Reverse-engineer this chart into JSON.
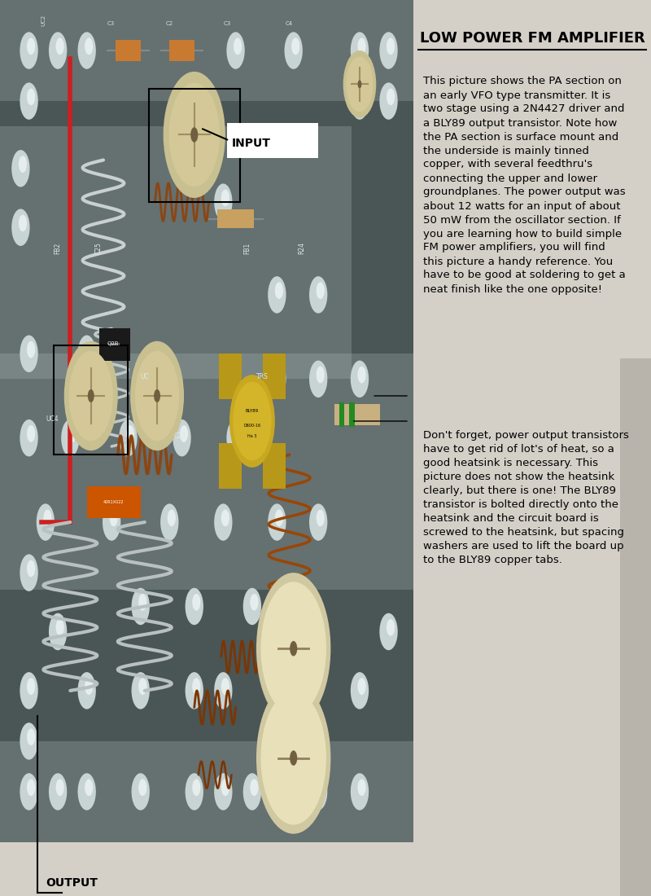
{
  "title": "LOW POWER FM AMPLIFIER",
  "title_fontsize": 13,
  "title_font": "Courier New",
  "paragraph1": "This picture shows the PA section on\nan early VFO type transmitter. It is\ntwo stage using a 2N4427 driver and\na BLY89 output transistor. Note how\nthe PA section is surface mount and\nthe underside is mainly tinned\ncopper, with several feedthru's\nconnecting the upper and lower\ngroundplanes. The power output was\nabout 12 watts for an input of about\n50 mW from the oscillator section. If\nyou are learning how to build simple\nFM power amplifiers, you will find\nthis picture a handy reference. You\nhave to be good at soldering to get a\nneat finish like the one opposite!",
  "paragraph2": "Don't forget, power output transistors\nhave to get rid of lot's of heat, so a\ngood heatsink is necessary. This\npicture does not show the heatsink\nclearly, but there is one! The BLY89\ntransistor is bolted directly onto the\nheatsink and the circuit board is\nscrewed to the heatsink, but spacing\nwashers are used to lift the board up\nto the BLY89 copper tabs.",
  "text_fontsize": 9.5,
  "text_font": "Courier New",
  "label_input": "INPUT",
  "label_output": "OUTPUT",
  "label_fontsize": 10,
  "label_font": "Courier New",
  "bg_color": "#d4d0c8",
  "fig_width": 8.0,
  "fig_height": 11.0
}
